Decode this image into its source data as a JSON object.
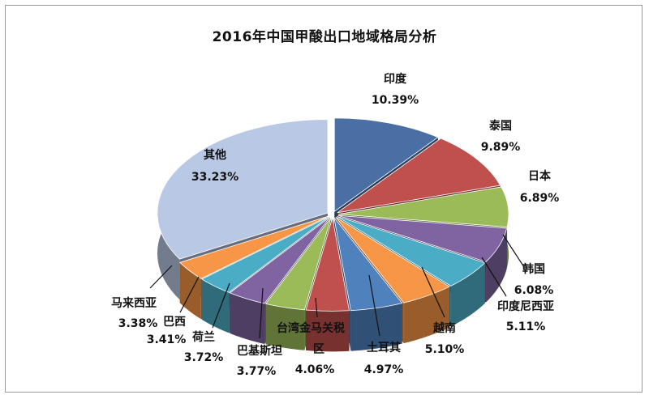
{
  "chart_data": {
    "type": "pie",
    "title": "2016年中国甲酸出口地域格局分析",
    "slices": [
      {
        "name": "印度",
        "value": 10.39,
        "label": "10.39%",
        "color": "#4A6FA5"
      },
      {
        "name": "泰国",
        "value": 9.89,
        "label": "9.89%",
        "color": "#C0504D"
      },
      {
        "name": "日本",
        "value": 6.89,
        "label": "6.89%",
        "color": "#9BBB59"
      },
      {
        "name": "韩国",
        "value": 6.08,
        "label": "6.08%",
        "color": "#8064A2"
      },
      {
        "name": "印度尼西亚",
        "value": 5.11,
        "label": "5.11%",
        "color": "#4BACC6"
      },
      {
        "name": "越南",
        "value": 5.1,
        "label": "5.10%",
        "color": "#F79646"
      },
      {
        "name": "土耳其",
        "value": 4.97,
        "label": "4.97%",
        "color": "#4F81BD"
      },
      {
        "name": "台湾金马关税区",
        "value": 4.06,
        "label": "4.06%",
        "color": "#C0504D"
      },
      {
        "name": "巴基斯坦",
        "value": 3.77,
        "label": "3.77%",
        "color": "#9BBB59"
      },
      {
        "name": "荷兰",
        "value": 3.72,
        "label": "3.72%",
        "color": "#8064A2"
      },
      {
        "name": "巴西",
        "value": 3.41,
        "label": "3.41%",
        "color": "#4BACC6"
      },
      {
        "name": "马来西亚",
        "value": 3.38,
        "label": "3.38%",
        "color": "#F79646"
      },
      {
        "name": "其他",
        "value": 33.23,
        "label": "33.23%",
        "color": "#B9C8E4"
      }
    ]
  }
}
